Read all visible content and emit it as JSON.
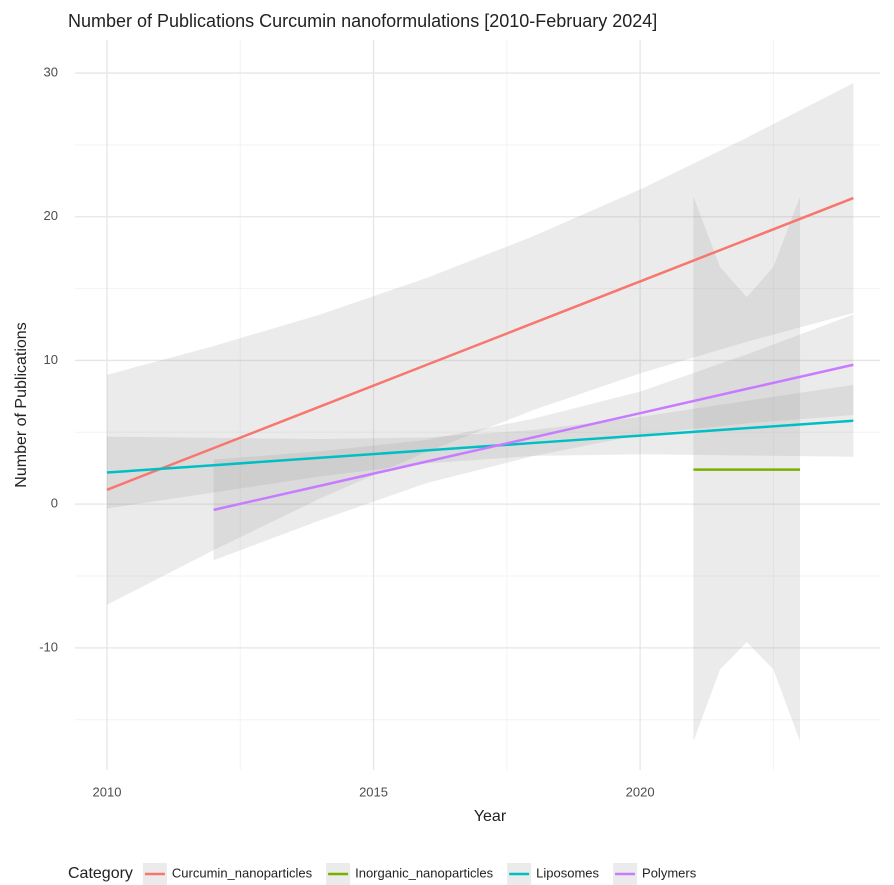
{
  "chart_data": {
    "type": "line",
    "title": "Number of Publications Curcumin nanoformulations [2010-February 2024]",
    "x_label": "Year",
    "y_label": "Number of Publications",
    "legend_title": "Category",
    "legend_position": "bottom",
    "grid": true,
    "xlim": [
      2009.4,
      2024.5
    ],
    "ylim": [
      -18.5,
      32.3
    ],
    "xticks": [
      2010,
      2015,
      2020
    ],
    "yticks": [
      -10,
      0,
      10,
      20,
      30
    ],
    "xminor": [
      2012.5,
      2017.5,
      2022.5
    ],
    "yminor": [
      -15,
      -5,
      5,
      15,
      25
    ],
    "band_color": "#999999",
    "series": [
      {
        "name": "Curcumin_nanoparticles",
        "color": "#F8766D",
        "x": [
          2010,
          2012,
          2014,
          2016,
          2018,
          2020,
          2022,
          2024
        ],
        "values": [
          1.0,
          3.9,
          6.8,
          9.7,
          12.6,
          15.5,
          18.4,
          21.3
        ],
        "lower": [
          -7.0,
          -3.2,
          0.4,
          3.65,
          6.55,
          9.1,
          11.3,
          13.3
        ],
        "upper": [
          9.0,
          11.0,
          13.2,
          15.75,
          18.65,
          21.9,
          25.5,
          29.3
        ]
      },
      {
        "name": "Inorganic_nanoparticles",
        "color": "#7CAE00",
        "x": [
          2021,
          2021.5,
          2022,
          2022.5,
          2023
        ],
        "values": [
          2.4,
          2.4,
          2.4,
          2.4,
          2.4
        ],
        "lower": [
          -16.5,
          -11.5,
          -9.6,
          -11.5,
          -16.5
        ],
        "upper": [
          21.4,
          16.5,
          14.4,
          16.5,
          21.4
        ]
      },
      {
        "name": "Liposomes",
        "color": "#00BFC4",
        "x": [
          2010,
          2012,
          2014,
          2016,
          2018,
          2020,
          2022,
          2024
        ],
        "values": [
          2.2,
          2.71,
          3.23,
          3.74,
          4.26,
          4.77,
          5.29,
          5.8
        ],
        "lower": [
          -0.3,
          0.81,
          1.93,
          2.84,
          3.36,
          3.47,
          3.39,
          3.3
        ],
        "upper": [
          4.7,
          4.61,
          4.53,
          4.64,
          5.16,
          6.07,
          7.19,
          8.3
        ]
      },
      {
        "name": "Polymers",
        "color": "#C77CFF",
        "x": [
          2012,
          2014,
          2016,
          2018,
          2020,
          2022,
          2024
        ],
        "values": [
          -0.4,
          1.28,
          2.97,
          4.65,
          6.33,
          8.02,
          9.7
        ],
        "lower": [
          -3.9,
          -1.12,
          1.47,
          3.35,
          4.83,
          5.62,
          6.2
        ],
        "upper": [
          3.1,
          3.68,
          4.47,
          5.95,
          7.83,
          10.42,
          13.2
        ]
      }
    ]
  }
}
